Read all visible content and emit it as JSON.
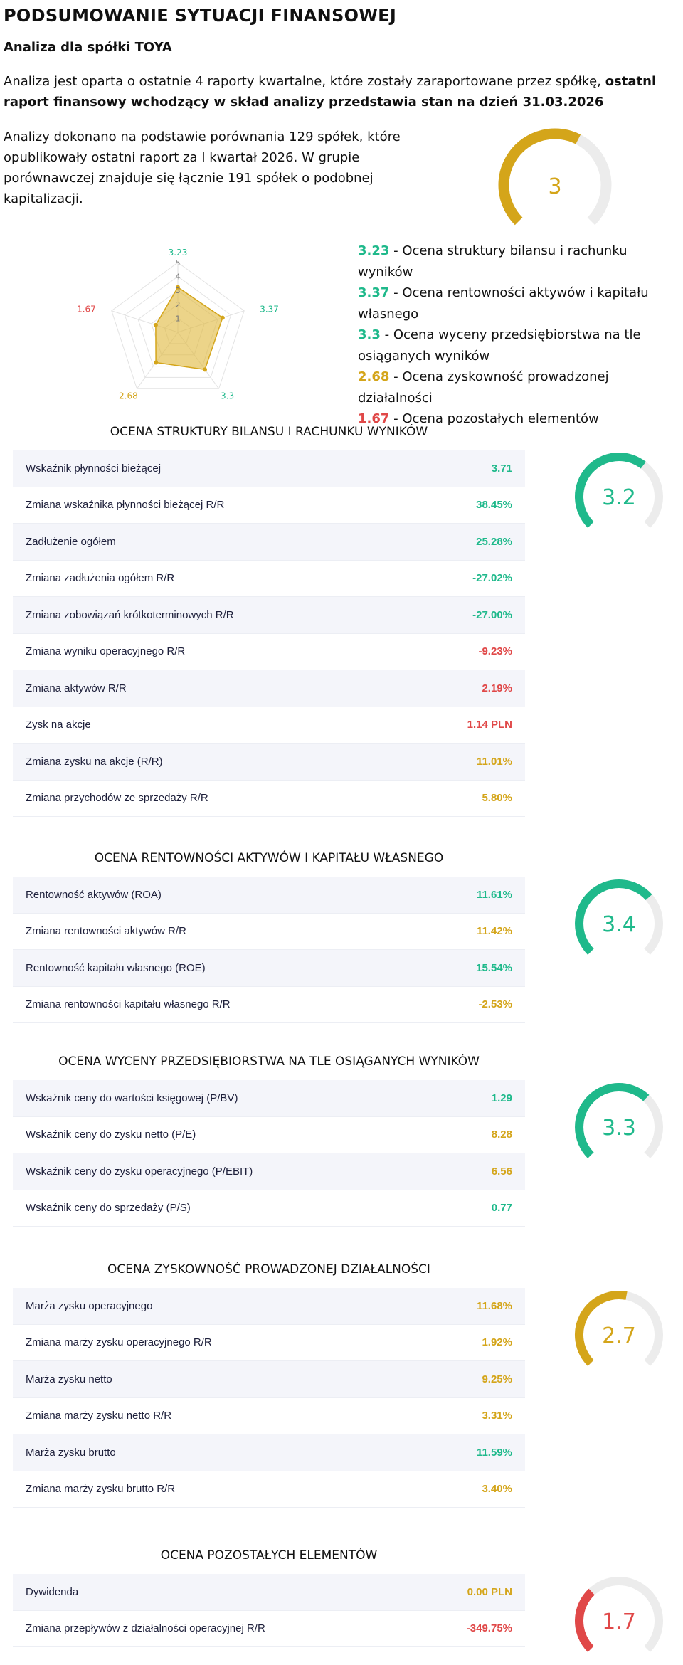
{
  "header": {
    "title": "PODSUMOWANIE SYTUACJI FINANSOWEJ",
    "subtitle": "Analiza dla spółki TOYA",
    "intro_plain": "Analiza jest oparta o ostatnie 4 raporty kwartalne, które zostały zaraportowane przez spółkę, ",
    "intro_bold": "ostatni raport finansowy wchodzący w skład analizy przedstawia stan na dzień 31.03.2026",
    "comparison": "Analizy dokonano na podstawie porównania 129 spółek, które opublikowały ostatni raport za I kwartał 2026. W grupie porównawczej znajduje się łącznie 191 spółek o podobnej kapitalizacji."
  },
  "overall": {
    "score": "3",
    "level": 0.6,
    "color": "#d4a51a"
  },
  "radar": {
    "max": 5,
    "ticks": [
      "1",
      "2",
      "3",
      "4",
      "5"
    ],
    "axes": [
      {
        "value": 3.23,
        "label": "3.23",
        "color": "#1fb98b"
      },
      {
        "value": 3.37,
        "label": "3.37",
        "color": "#1fb98b"
      },
      {
        "value": 3.3,
        "label": "3.3",
        "color": "#1fb98b"
      },
      {
        "value": 2.68,
        "label": "2.68",
        "color": "#d4a51a"
      },
      {
        "value": 1.67,
        "label": "1.67",
        "color": "#e04848"
      }
    ]
  },
  "legend": [
    {
      "num": "3.23",
      "text": " - Ocena struktury bilansu i rachunku wyników",
      "color": "#1fb98b"
    },
    {
      "num": "3.37",
      "text": " - Ocena rentowności aktywów i kapitału własnego",
      "color": "#1fb98b"
    },
    {
      "num": "3.3",
      "text": " - Ocena wyceny przedsiębiorstwa na tle osiąganych wyników",
      "color": "#1fb98b"
    },
    {
      "num": "2.68",
      "text": " - Ocena zyskowność prowadzonej działalności",
      "color": "#d4a51a"
    },
    {
      "num": "1.67",
      "text": " - Ocena pozostałych elementów",
      "color": "#e04848"
    }
  ],
  "sections": [
    {
      "title": "OCENA STRUKTURY BILANSU I RACHUNKU WYNIKÓW",
      "score": "3.2",
      "level": 0.64,
      "color": "#1fb98b",
      "rows": [
        {
          "label": "Wskaźnik płynności bieżącej",
          "value": "3.71",
          "tone": "g"
        },
        {
          "label": "Zmiana wskaźnika płynności bieżącej R/R",
          "value": "38.45%",
          "tone": "g"
        },
        {
          "label": "Zadłużenie ogółem",
          "value": "25.28%",
          "tone": "g"
        },
        {
          "label": "Zmiana zadłużenia ogółem R/R",
          "value": "-27.02%",
          "tone": "g"
        },
        {
          "label": "Zmiana zobowiązań krótkoterminowych R/R",
          "value": "-27.00%",
          "tone": "g"
        },
        {
          "label": "Zmiana wyniku operacyjnego R/R",
          "value": "-9.23%",
          "tone": "r"
        },
        {
          "label": "Zmiana aktywów R/R",
          "value": "2.19%",
          "tone": "r"
        },
        {
          "label": "Zysk na akcje",
          "value": "1.14 PLN",
          "tone": "r"
        },
        {
          "label": "Zmiana zysku na akcje (R/R)",
          "value": "11.01%",
          "tone": "y"
        },
        {
          "label": "Zmiana przychodów ze sprzedaży R/R",
          "value": "5.80%",
          "tone": "y"
        }
      ]
    },
    {
      "title": "OCENA RENTOWNOŚCI AKTYWÓW I KAPITAŁU WŁASNEGO",
      "score": "3.4",
      "level": 0.68,
      "color": "#1fb98b",
      "rows": [
        {
          "label": "Rentowność aktywów (ROA)",
          "value": "11.61%",
          "tone": "g"
        },
        {
          "label": "Zmiana rentowności aktywów R/R",
          "value": "11.42%",
          "tone": "y"
        },
        {
          "label": "Rentowność kapitału własnego (ROE)",
          "value": "15.54%",
          "tone": "g"
        },
        {
          "label": "Zmiana rentowności kapitału własnego R/R",
          "value": "-2.53%",
          "tone": "y"
        }
      ]
    },
    {
      "title": "OCENA WYCENY PRZEDSIĘBIORSTWA NA TLE OSIĄGANYCH WYNIKÓW",
      "score": "3.3",
      "level": 0.66,
      "color": "#1fb98b",
      "rows": [
        {
          "label": "Wskaźnik ceny do wartości księgowej (P/BV)",
          "value": "1.29",
          "tone": "g"
        },
        {
          "label": "Wskaźnik ceny do zysku netto (P/E)",
          "value": "8.28",
          "tone": "y"
        },
        {
          "label": "Wskaźnik ceny do zysku operacyjnego (P/EBIT)",
          "value": "6.56",
          "tone": "y"
        },
        {
          "label": "Wskaźnik ceny do sprzedaży (P/S)",
          "value": "0.77",
          "tone": "g"
        }
      ]
    },
    {
      "title": "OCENA ZYSKOWNOŚĆ PROWADZONEJ DZIAŁALNOŚCI",
      "score": "2.7",
      "level": 0.54,
      "color": "#d4a51a",
      "rows": [
        {
          "label": "Marża zysku operacyjnego",
          "value": "11.68%",
          "tone": "y"
        },
        {
          "label": "Zmiana marży zysku operacyjnego R/R",
          "value": "1.92%",
          "tone": "y"
        },
        {
          "label": "Marża zysku netto",
          "value": "9.25%",
          "tone": "y"
        },
        {
          "label": "Zmiana marży zysku netto R/R",
          "value": "3.31%",
          "tone": "y"
        },
        {
          "label": "Marża zysku brutto",
          "value": "11.59%",
          "tone": "g"
        },
        {
          "label": "Zmiana marży zysku brutto R/R",
          "value": "3.40%",
          "tone": "y"
        }
      ]
    },
    {
      "title": "OCENA POZOSTAŁYCH ELEMENTÓW",
      "score": "1.7",
      "level": 0.34,
      "color": "#e04848",
      "rows": [
        {
          "label": "Dywidenda",
          "value": "0.00 PLN",
          "tone": "y"
        },
        {
          "label": "Zmiana przepływów z działalności operacyjnej R/R",
          "value": "-349.75%",
          "tone": "r"
        }
      ]
    }
  ]
}
